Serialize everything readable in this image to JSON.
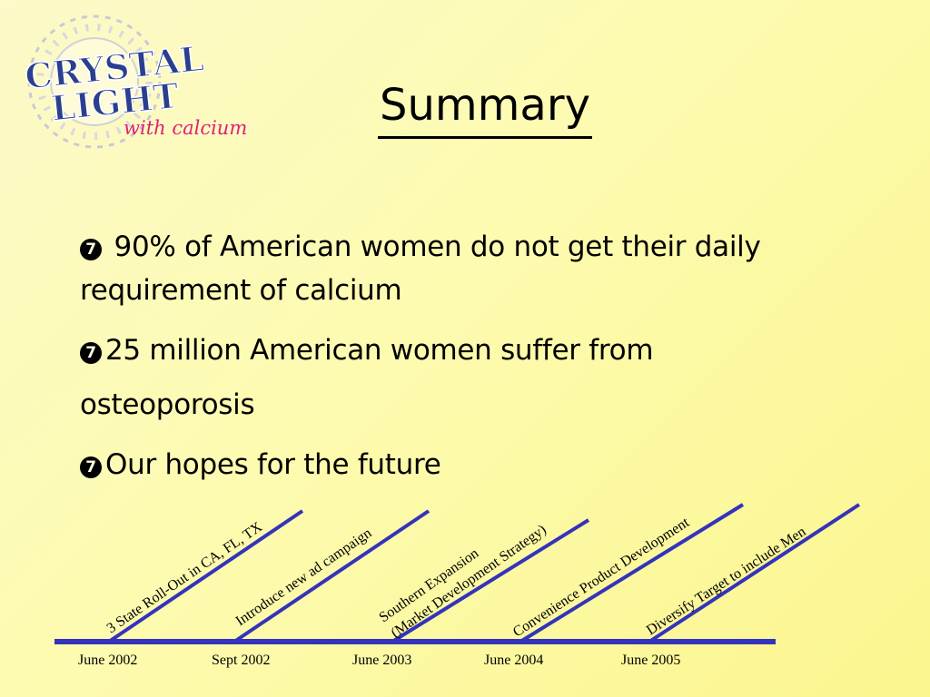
{
  "logo": {
    "line1": "CRYSTAL",
    "line2": "LIGHT",
    "tagline": "with calcium"
  },
  "title": "Summary",
  "bullets": [
    {
      "marker": "7",
      "text": " 90% of American women do not get their daily requirement of  calcium"
    },
    {
      "marker": "7",
      "line1": "25 million American women suffer from",
      "line2": "osteoporosis"
    },
    {
      "marker": "7",
      "text": "Our hopes for the future"
    }
  ],
  "timeline": {
    "milestones": [
      {
        "label": "3 State Roll-Out in CA, FL, TX"
      },
      {
        "label": "Introduce new ad campaign"
      },
      {
        "label_line1": "Southern Expansion",
        "label_line2": "(Market Development Strategy)"
      },
      {
        "label": "Convenience Product Development"
      },
      {
        "label": "Diversify Target to include Men"
      }
    ],
    "dates": [
      "June 2002",
      "Sept 2002",
      "June 2003",
      "June 2004",
      "June 2005"
    ],
    "line_color": "#3333bb"
  }
}
